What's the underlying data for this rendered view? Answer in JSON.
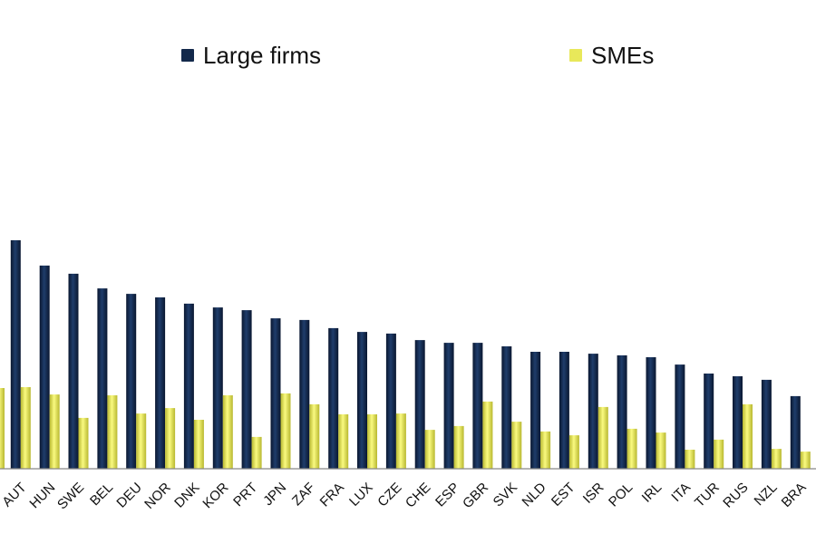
{
  "chart_data": {
    "type": "bar",
    "title": "",
    "xlabel": "",
    "ylabel": "",
    "ylim": [
      0,
      100
    ],
    "grid": false,
    "legend": "top",
    "categories": [
      "AUT",
      "HUN",
      "SWE",
      "BEL",
      "DEU",
      "NOR",
      "DNK",
      "KOR",
      "PRT",
      "JPN",
      "ZAF",
      "FRA",
      "LUX",
      "CZE",
      "CHE",
      "ESP",
      "GBR",
      "SVK",
      "NLD",
      "EST",
      "ISR",
      "POL",
      "IRL",
      "ITA",
      "TUR",
      "RUS",
      "NZL",
      "BRA"
    ],
    "series": [
      {
        "name": "Large firms",
        "color": "#13294b",
        "values": [
          84,
          74.7,
          71.7,
          66.3,
          64.3,
          63,
          60.7,
          59.3,
          58.3,
          55.3,
          54.7,
          51.7,
          50.3,
          49.7,
          47.3,
          46.3,
          46.3,
          45,
          43,
          43,
          42.3,
          41.7,
          41,
          38.3,
          35,
          34,
          32.7,
          26.7
        ]
      },
      {
        "name": "SMEs",
        "color": "#e8e85a",
        "values": [
          30,
          27.3,
          18.7,
          27,
          20.3,
          22.3,
          18,
          27,
          11.7,
          27.7,
          23.7,
          20,
          20,
          20.3,
          14.3,
          15.7,
          24.7,
          17.3,
          13.7,
          12.3,
          22.7,
          14.7,
          13.3,
          7,
          10.7,
          23.7,
          7.3,
          6.3
        ]
      }
    ]
  }
}
